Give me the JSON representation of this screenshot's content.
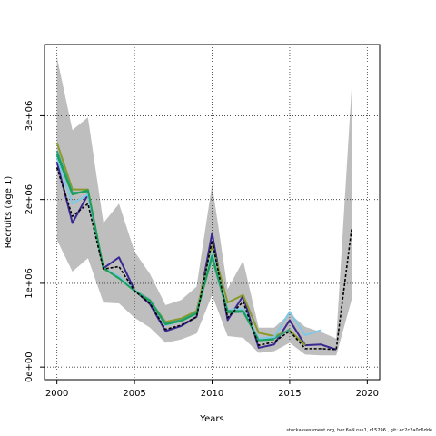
{
  "chart_data": {
    "type": "line",
    "xlabel": "Years",
    "ylabel": "Recruits (age 1)",
    "xlim": [
      1999.2,
      2020.8
    ],
    "ylim": [
      -150000,
      3850000
    ],
    "xticks": [
      2000,
      2005,
      2010,
      2015,
      2020
    ],
    "xtick_labels": [
      "2000",
      "2005",
      "2010",
      "2015",
      "2020"
    ],
    "yticks": [
      0,
      1000000,
      2000000,
      3000000
    ],
    "ytick_labels": [
      "0e+00",
      "1e+06",
      "2e+06",
      "3e+06"
    ],
    "grid": true,
    "band": {
      "color": "#bebebe",
      "x": [
        2000,
        2001,
        2002,
        2003,
        2004,
        2005,
        2006,
        2007,
        2008,
        2009,
        2010,
        2011,
        2012,
        2013,
        2014,
        2015,
        2016,
        2017,
        2018,
        2019
      ],
      "upper": [
        3700000,
        2830000,
        2980000,
        1720000,
        1950000,
        1380000,
        1110000,
        740000,
        800000,
        960000,
        2180000,
        930000,
        1270000,
        470000,
        470000,
        640000,
        480000,
        420000,
        340000,
        3360000
      ],
      "lower": [
        1520000,
        1140000,
        1300000,
        770000,
        760000,
        590000,
        470000,
        290000,
        330000,
        400000,
        860000,
        370000,
        350000,
        170000,
        190000,
        290000,
        150000,
        140000,
        140000,
        810000
      ]
    },
    "series": [
      {
        "color": "#000000",
        "dashed": true,
        "x": [
          2000,
          2001,
          2002,
          2003,
          2004,
          2005,
          2006,
          2007,
          2008,
          2009,
          2010,
          2011,
          2012,
          2013,
          2014,
          2015,
          2016,
          2017,
          2018,
          2019
        ],
        "values": [
          2380000,
          1800000,
          1950000,
          1170000,
          1200000,
          910000,
          760000,
          450000,
          500000,
          600000,
          1510000,
          590000,
          780000,
          260000,
          300000,
          430000,
          220000,
          220000,
          210000,
          1660000
        ]
      },
      {
        "color": "#3a2890",
        "x": [
          2000,
          2001,
          2002,
          2003,
          2004,
          2005,
          2006,
          2007,
          2008,
          2009,
          2010,
          2011,
          2012,
          2013,
          2014,
          2015,
          2016,
          2017,
          2018
        ],
        "values": [
          2450000,
          1720000,
          2060000,
          1180000,
          1310000,
          920000,
          750000,
          430000,
          490000,
          600000,
          1600000,
          560000,
          850000,
          230000,
          270000,
          560000,
          260000,
          270000,
          210000
        ]
      },
      {
        "color": "#8b9a2c",
        "x": [
          2000,
          2001,
          2002,
          2003,
          2004,
          2005,
          2006,
          2007,
          2008,
          2009,
          2010,
          2011,
          2012,
          2013,
          2014,
          2015,
          2016
        ],
        "values": [
          2680000,
          2120000,
          2120000,
          1170000,
          1080000,
          920000,
          790000,
          540000,
          580000,
          670000,
          1460000,
          770000,
          860000,
          410000,
          370000,
          440000,
          260000
        ]
      },
      {
        "color": "#30a080",
        "x": [
          2000,
          2001,
          2002,
          2003,
          2004,
          2005,
          2006,
          2007,
          2008,
          2009,
          2010,
          2011,
          2012,
          2013,
          2014,
          2015
        ],
        "values": [
          2580000,
          2080000,
          2090000,
          1180000,
          1060000,
          920000,
          800000,
          520000,
          560000,
          650000,
          1310000,
          650000,
          660000,
          330000,
          340000,
          450000
        ]
      },
      {
        "color": "#7ec8e8",
        "x": [
          2000,
          2001,
          2002,
          2003,
          2004,
          2005,
          2006,
          2007,
          2008,
          2009,
          2010,
          2011,
          2012,
          2013,
          2014,
          2015,
          2016,
          2017
        ],
        "values": [
          2500000,
          1950000,
          2060000,
          1180000,
          1080000,
          920000,
          790000,
          500000,
          550000,
          640000,
          1380000,
          680000,
          700000,
          340000,
          360000,
          660000,
          380000,
          440000
        ]
      },
      {
        "color": "#1aa05a",
        "x": [
          2000,
          2001,
          2002,
          2003,
          2004,
          2005,
          2006,
          2007,
          2008,
          2009,
          2010,
          2011,
          2012,
          2013,
          2014
        ],
        "values": [
          2540000,
          2060000,
          2110000,
          1180000,
          1060000,
          910000,
          790000,
          510000,
          550000,
          640000,
          1330000,
          670000,
          670000,
          320000,
          330000
        ]
      }
    ]
  },
  "footer": "stockassessment.org, her.6aN.run1, r15296 , git: ec2c2a0c6dde"
}
